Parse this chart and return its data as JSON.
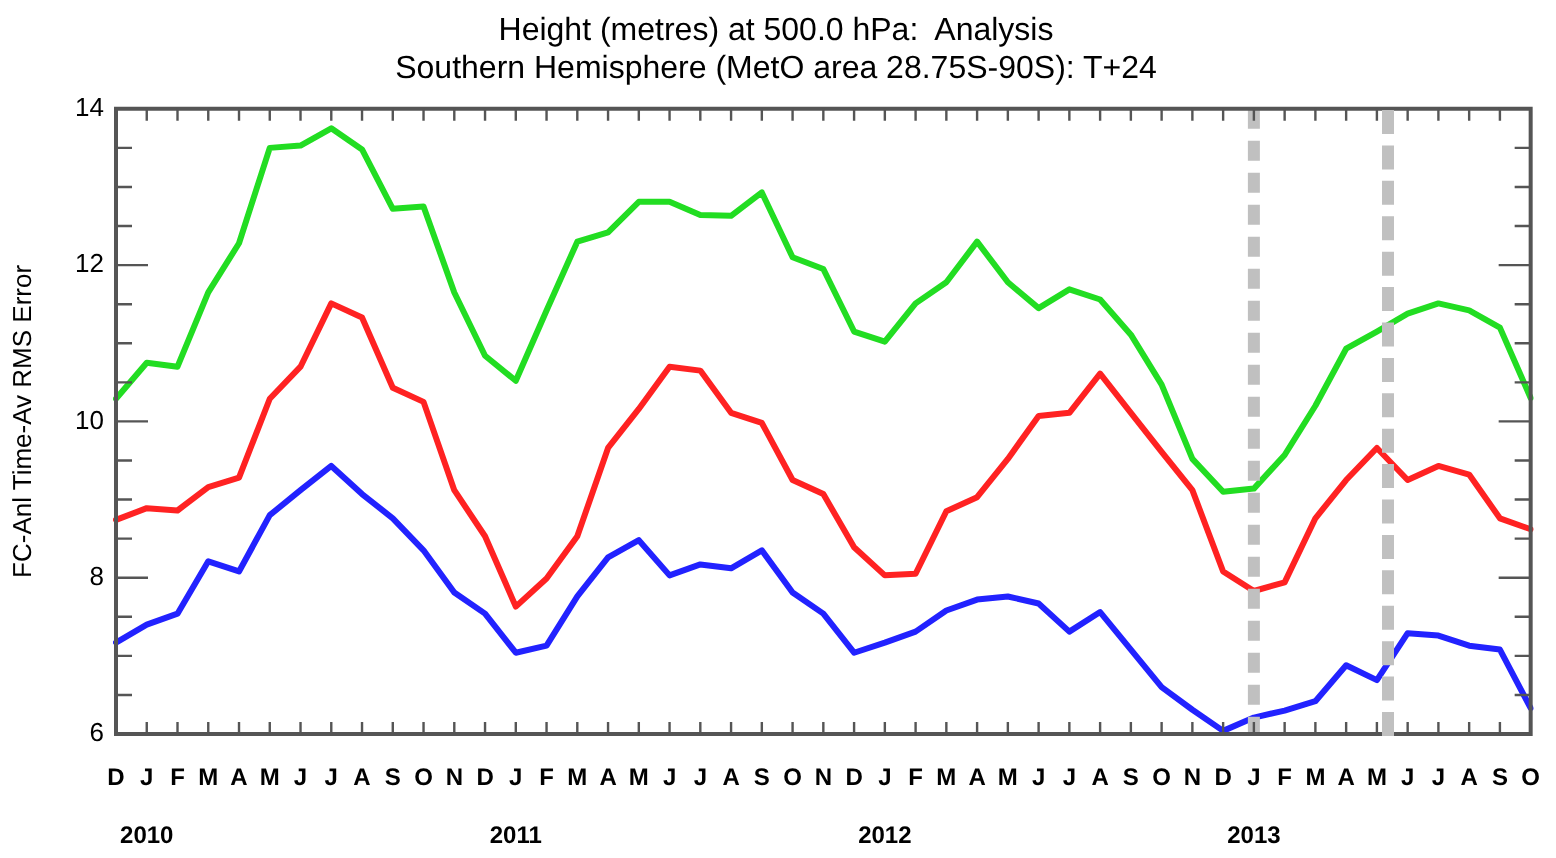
{
  "chart_data": {
    "type": "line",
    "title": "Height (metres) at 500.0 hPa:  Analysis",
    "subtitle": "Southern Hemisphere (MetO area 28.75S-90S): T+24",
    "ylabel": "FC-Anl Time-Av RMS Error",
    "categories": [
      "D",
      "J\n2010",
      "F",
      "M",
      "A",
      "M",
      "J",
      "J",
      "A",
      "S",
      "O",
      "N",
      "D",
      "J\n2011",
      "F",
      "M",
      "A",
      "M",
      "J",
      "J",
      "A",
      "S",
      "O",
      "N",
      "D",
      "J\n2012",
      "F",
      "M",
      "A",
      "M",
      "J",
      "J",
      "A",
      "S",
      "O",
      "N",
      "D",
      "J\n2013",
      "F",
      "M",
      "A",
      "M",
      "J",
      "J",
      "A",
      "S",
      "O"
    ],
    "series": [
      {
        "color": "#22dd22",
        "values": [
          10.29,
          10.75,
          10.7,
          11.65,
          12.28,
          13.5,
          13.53,
          13.75,
          13.48,
          12.72,
          12.75,
          11.65,
          10.84,
          10.52,
          11.42,
          12.3,
          12.42,
          12.81,
          12.81,
          12.64,
          12.63,
          12.93,
          12.1,
          11.95,
          11.15,
          11.02,
          11.51,
          11.78,
          12.3,
          11.78,
          11.45,
          11.69,
          11.56,
          11.11,
          10.47,
          9.52,
          9.1,
          9.14,
          9.57,
          10.2,
          10.93,
          11.15,
          11.38,
          11.51,
          11.42,
          11.2,
          10.3
        ]
      },
      {
        "color": "#ff2222",
        "values": [
          8.74,
          8.89,
          8.86,
          9.16,
          9.28,
          10.29,
          10.7,
          11.51,
          11.33,
          10.43,
          10.25,
          9.12,
          8.53,
          7.63,
          7.99,
          8.53,
          9.66,
          10.16,
          10.7,
          10.65,
          10.11,
          9.98,
          9.25,
          9.07,
          8.39,
          8.03,
          8.05,
          8.85,
          9.03,
          9.52,
          10.07,
          10.11,
          10.61,
          10.11,
          9.61,
          9.12,
          8.08,
          7.83,
          7.94,
          8.76,
          9.25,
          9.66,
          9.25,
          9.43,
          9.32,
          8.76,
          8.62
        ]
      },
      {
        "color": "#2222ff",
        "values": [
          7.17,
          7.4,
          7.54,
          8.21,
          8.08,
          8.8,
          9.12,
          9.43,
          9.07,
          8.76,
          8.35,
          7.81,
          7.54,
          7.04,
          7.13,
          7.76,
          8.26,
          8.48,
          8.03,
          8.17,
          8.12,
          8.35,
          7.81,
          7.54,
          7.04,
          7.17,
          7.31,
          7.58,
          7.72,
          7.76,
          7.67,
          7.31,
          7.56,
          7.08,
          6.6,
          6.31,
          6.04,
          6.21,
          6.3,
          6.42,
          6.88,
          6.69,
          7.29,
          7.26,
          7.13,
          7.08,
          6.33
        ]
      }
    ],
    "ylim": [
      6,
      14
    ],
    "yticks": [
      6,
      {
        "value": 6.5,
        "label": null
      },
      {
        "value": 7,
        "label": null
      },
      {
        "value": 7.5,
        "label": null
      },
      8,
      {
        "value": 8.5,
        "label": null
      },
      {
        "value": 9,
        "label": null
      },
      {
        "value": 9.5,
        "label": null
      },
      10,
      {
        "value": 10.5,
        "label": null
      },
      {
        "value": 11,
        "label": null
      },
      {
        "value": 11.5,
        "label": null
      },
      12,
      {
        "value": 12.5,
        "label": null
      },
      {
        "value": 13,
        "label": null
      },
      {
        "value": 13.5,
        "label": null
      },
      14
    ],
    "ref_lines": [
      {
        "axis": "x",
        "value": "J\n2013",
        "color": "#c0c0c0",
        "line_style": "dashed"
      }
    ],
    "grid": false,
    "legend": false,
    "marker": "none",
    "line_style": "solid"
  }
}
